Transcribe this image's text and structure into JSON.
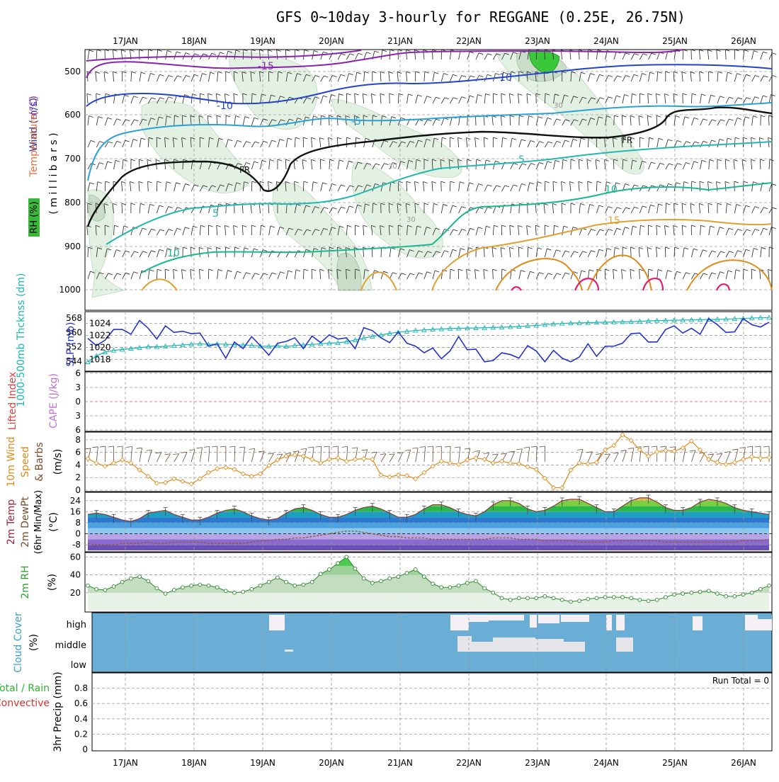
{
  "title": "GFS 0~10day 3-hourly for REGGANE (0.25E, 26.75N)",
  "colors": {
    "temperature": "#d9773a",
    "rh": "#55b85a",
    "wind": "#2233aa",
    "thickness": "#19b5b5",
    "slp": "#2233cc",
    "lifted": "#e04040",
    "cape": "#c070d0",
    "wind10m": "#e08a18",
    "cloud": "#6aaed6",
    "rain": "#30b030",
    "convective": "#e03030"
  },
  "chart_data": [
    {
      "type": "line",
      "panel": "upper-air",
      "ylabel_parts": [
        "RH (%)",
        "Temperature",
        "(°C)",
        "Wind (m/s)"
      ],
      "yaxis_label": "( m i l l i b a r s )",
      "y_ticks": [
        "500",
        "600",
        "700",
        "800",
        "900",
        "1000"
      ],
      "x_ticks": [
        "17JAN",
        "18JAN",
        "19JAN",
        "20JAN",
        "21JAN",
        "22JAN",
        "23JAN",
        "24JAN",
        "25JAN",
        "26JAN"
      ],
      "contour_labels": [
        "-15",
        "-10",
        "-10",
        "-5",
        "FR",
        "FR",
        "5",
        "10",
        "5",
        "10",
        "15",
        "30",
        "30",
        "30"
      ]
    },
    {
      "type": "line",
      "panel": "slp-thickness",
      "ylabel_left": "1000-500mb Thcknss (dm)",
      "ylabel_right": "SLP (mb)",
      "y_ticks_left": [
        "544",
        "552",
        "560",
        "568"
      ],
      "y_ticks_right": [
        "1018",
        "1020",
        "1022",
        "1024"
      ],
      "ylim_left": [
        540,
        570
      ],
      "ylim_right": [
        1016.5,
        1025.5
      ],
      "series": [
        {
          "name": "SLP",
          "values": [
            1021.5,
            1020.3,
            1021.2,
            1023,
            1023,
            1022.2,
            1024.5,
            1023.2,
            1021.4,
            1023.6,
            1022.5,
            1022.7,
            1022.3,
            1022.4,
            1020.2,
            1020.6,
            1018.2,
            1020.9,
            1019.8,
            1021.8,
            1020.3,
            1018.7,
            1020.7,
            1021,
            1021.6,
            1019.8,
            1021.9,
            1020.8,
            1022.1,
            1021.4,
            1021.6,
            1019.8,
            1023.3,
            1022.8,
            1021.6,
            1020.8,
            1022.6,
            1020.7,
            1020.2,
            1019.1,
            1019.9,
            1018.1,
            1019.4,
            1021.8,
            1019.6,
            1019.7,
            1017.6,
            1017.8,
            1019.1,
            1018.8,
            1018.2,
            1020.3,
            1019.4,
            1017.6,
            1019.5,
            1018.2,
            1017.6,
            1018.4,
            1020.6,
            1018.5,
            1020.2,
            1020.2,
            1020.7,
            1022.3,
            1022.4,
            1020.9,
            1020.9,
            1023,
            1023.6,
            1022.4,
            1023.2,
            1022.2,
            1024.8,
            1023.8,
            1022.5,
            1022.6,
            1024.8,
            1023.8,
            1023.4,
            1024.2
          ]
        },
        {
          "name": "Thickness",
          "values": [
            543.5,
            547,
            549,
            550,
            550.5,
            551,
            551.5,
            552,
            552,
            552.3,
            552.7,
            553,
            553.4,
            553.7,
            553.3,
            553.6,
            553.4,
            553.2,
            553,
            552.8,
            552.4,
            552.3,
            552.5,
            552.2,
            552.7,
            553,
            553.3,
            553.7,
            554,
            554.2,
            554.8,
            555.8,
            556.8,
            557.8,
            558.6,
            559.5,
            560.1,
            560.6,
            561.1,
            561.4,
            561.7,
            561.9,
            562.2,
            562.3,
            562.4,
            562.5,
            562.6,
            562.8,
            562.9,
            563.1,
            563.3,
            563.6,
            563.9,
            564.3,
            564.7,
            565,
            565.2,
            565.3,
            565.4,
            565.6,
            565.7,
            565.8,
            565.9,
            566,
            566.2,
            566.4,
            566.6,
            566.7,
            566.8,
            566.9,
            567,
            567.1,
            567.2,
            567.3,
            567.4,
            567.6,
            567.8,
            568,
            568.2,
            568.3
          ]
        }
      ]
    },
    {
      "type": "line",
      "panel": "lifted-cape",
      "ylabel_left": "Lifted Index",
      "ylabel_right": "CAPE (J/kg)",
      "y_ticks": [
        "-6",
        "-3",
        "0",
        "3",
        "6"
      ],
      "ylim": [
        -6,
        6
      ]
    },
    {
      "type": "line",
      "panel": "wind10m",
      "ylabel_parts": [
        "10m Wind",
        "Speed",
        "& Barbs",
        "(m/s)"
      ],
      "y_ticks": [
        "0",
        "2",
        "4",
        "6",
        "8"
      ],
      "ylim": [
        0,
        9
      ],
      "series": [
        {
          "name": "10m Wind Speed",
          "values": [
            5,
            4.3,
            3.8,
            4.3,
            4.8,
            4.3,
            3.2,
            2.2,
            1.1,
            1.2,
            1.8,
            1.4,
            1,
            1.8,
            2.8,
            3.4,
            3.6,
            3.3,
            2.6,
            2.2,
            2.6,
            3.9,
            4.8,
            5.4,
            5.6,
            5.4,
            4.9,
            4.3,
            4.9,
            5.1,
            4.6,
            4.9,
            5,
            4.9,
            2.4,
            2.1,
            2.4,
            2.3,
            1.8,
            2.8,
            3.8,
            4.6,
            4.3,
            4.1,
            4.8,
            5.1,
            4.9,
            4.3,
            4.6,
            4.3,
            4.2,
            3.7,
            3.3,
            1.9,
            0.4,
            0.4,
            3.2,
            4.3,
            4.2,
            4.4,
            6.4,
            7.1,
            8.8,
            7.9,
            6.4,
            5.4,
            6.1,
            6.3,
            6.2,
            6.7,
            7.8,
            6.4,
            4.9,
            4.4,
            4.1,
            4.4,
            4.9,
            5.3,
            5.1,
            5.2
          ]
        }
      ]
    },
    {
      "type": "line",
      "panel": "temp-dewpoint",
      "ylabel_parts": [
        "2m Temp",
        "2m DewPt",
        "(6hr Min/Max)",
        "(°C)"
      ],
      "y_ticks": [
        "-8",
        "0",
        "8",
        "16",
        "24"
      ],
      "ylim": [
        -12,
        28
      ],
      "series": [
        {
          "name": "2m Temp",
          "values": [
            14,
            15,
            14,
            12,
            10,
            9,
            11,
            15,
            16,
            17,
            14,
            12,
            10,
            10,
            12,
            15,
            17,
            18,
            16,
            13,
            11,
            10,
            11,
            15,
            18,
            19,
            17,
            14,
            12,
            12,
            14,
            17,
            19,
            20,
            18,
            15,
            12,
            12,
            14,
            18,
            21,
            21,
            19,
            16,
            14,
            13,
            16,
            21,
            24,
            24,
            22,
            18,
            16,
            17,
            20,
            24,
            25,
            25,
            22,
            19,
            16,
            16,
            20,
            24,
            26,
            26,
            23,
            19,
            17,
            17,
            19,
            23,
            25,
            24,
            22,
            19,
            17,
            16,
            15,
            14
          ]
        },
        {
          "name": "2m DewPt",
          "values": [
            -7,
            -8,
            -8,
            -8,
            -7,
            -7,
            -7,
            -6,
            -7,
            -7,
            -6,
            -6,
            -6,
            -6,
            -7,
            -7,
            -7,
            -7,
            -7,
            -6,
            -5,
            -5,
            -4,
            -4,
            -3,
            -3,
            -2,
            -1,
            0,
            1,
            2,
            2,
            1,
            0,
            -1,
            -2,
            -2,
            -3,
            -3,
            -3,
            -4,
            -4,
            -4,
            -4,
            -4,
            -4,
            -4,
            -3,
            -3,
            -3,
            -4,
            -4,
            -4,
            -5,
            -5,
            -5,
            -5,
            -6,
            -6,
            -6,
            -6,
            -5,
            -5,
            -5,
            -5,
            -5,
            -5,
            -6,
            -6,
            -6,
            -6,
            -6,
            -6,
            -6,
            -6,
            -6,
            -5,
            -5,
            -5,
            -4
          ]
        }
      ]
    },
    {
      "type": "area",
      "panel": "rh2m",
      "ylabel_parts": [
        "2m RH",
        "(%)"
      ],
      "y_ticks": [
        "20",
        "40",
        "60"
      ],
      "ylim": [
        0,
        65
      ],
      "series": [
        {
          "name": "2m RH",
          "values": [
            28,
            24,
            23,
            27,
            32,
            36,
            38,
            33,
            25,
            19,
            23,
            26,
            28,
            29,
            28,
            26,
            22,
            20,
            21,
            24,
            28,
            32,
            37,
            32,
            28,
            29,
            32,
            41,
            46,
            53,
            60,
            47,
            36,
            31,
            33,
            36,
            38,
            42,
            46,
            38,
            30,
            26,
            26,
            28,
            31,
            33,
            25,
            20,
            14,
            12,
            14,
            14,
            14,
            16,
            14,
            12,
            10,
            11,
            13,
            14,
            15,
            15,
            15,
            14,
            12,
            11,
            12,
            15,
            18,
            19,
            20,
            21,
            22,
            19,
            16,
            16,
            18,
            20,
            24,
            28
          ]
        }
      ]
    },
    {
      "type": "heatmap",
      "panel": "cloud-cover",
      "ylabel_parts": [
        "Cloud Cover",
        "(%)"
      ],
      "rows": [
        "high",
        "middle",
        "low"
      ]
    },
    {
      "type": "bar",
      "panel": "precip",
      "ylabel_parts": [
        "Total / Rain",
        "Convective",
        "3hr Precip (mm)"
      ],
      "y_ticks": [
        "0",
        "0.2",
        "0.4",
        "0.6",
        "0.8"
      ],
      "ylim": [
        0,
        1
      ],
      "run_total_label": "Run Total = 0",
      "values": []
    }
  ]
}
